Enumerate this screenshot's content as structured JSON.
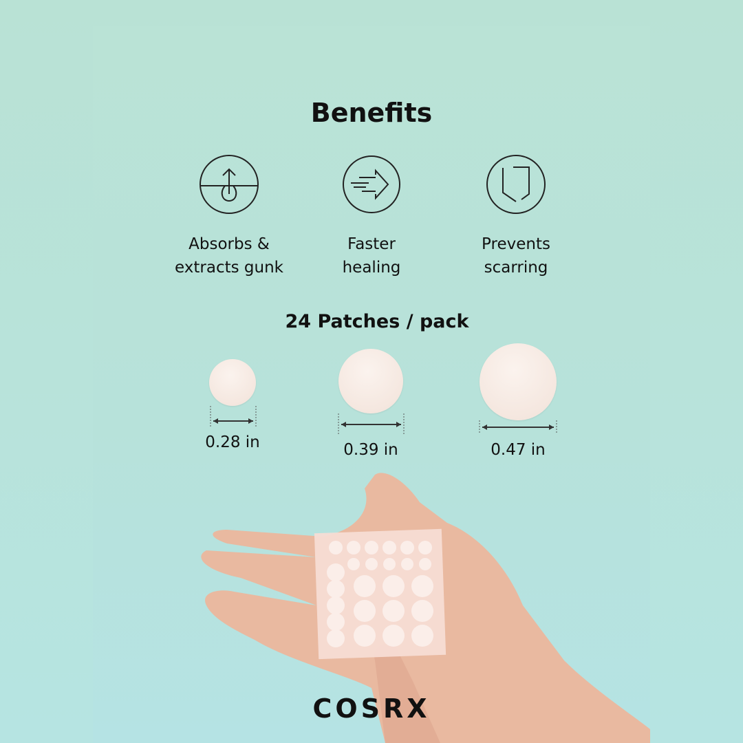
{
  "title": "Benefits",
  "benefits": [
    {
      "icon": "absorb-icon",
      "line1": "Absorbs &",
      "line2": "extracts gunk"
    },
    {
      "icon": "fast-arrow-icon",
      "line1": "Faster",
      "line2": "healing"
    },
    {
      "icon": "shield-icon",
      "line1": "Prevents",
      "line2": "scarring"
    }
  ],
  "pack": "24 Patches / pack",
  "sizes": [
    "0.28 in",
    "0.39 in",
    "0.47 in"
  ],
  "brand": "COSRX",
  "colors": {
    "background": "#b9e2d5",
    "text": "#111111",
    "patch": "#f5e8e0"
  }
}
